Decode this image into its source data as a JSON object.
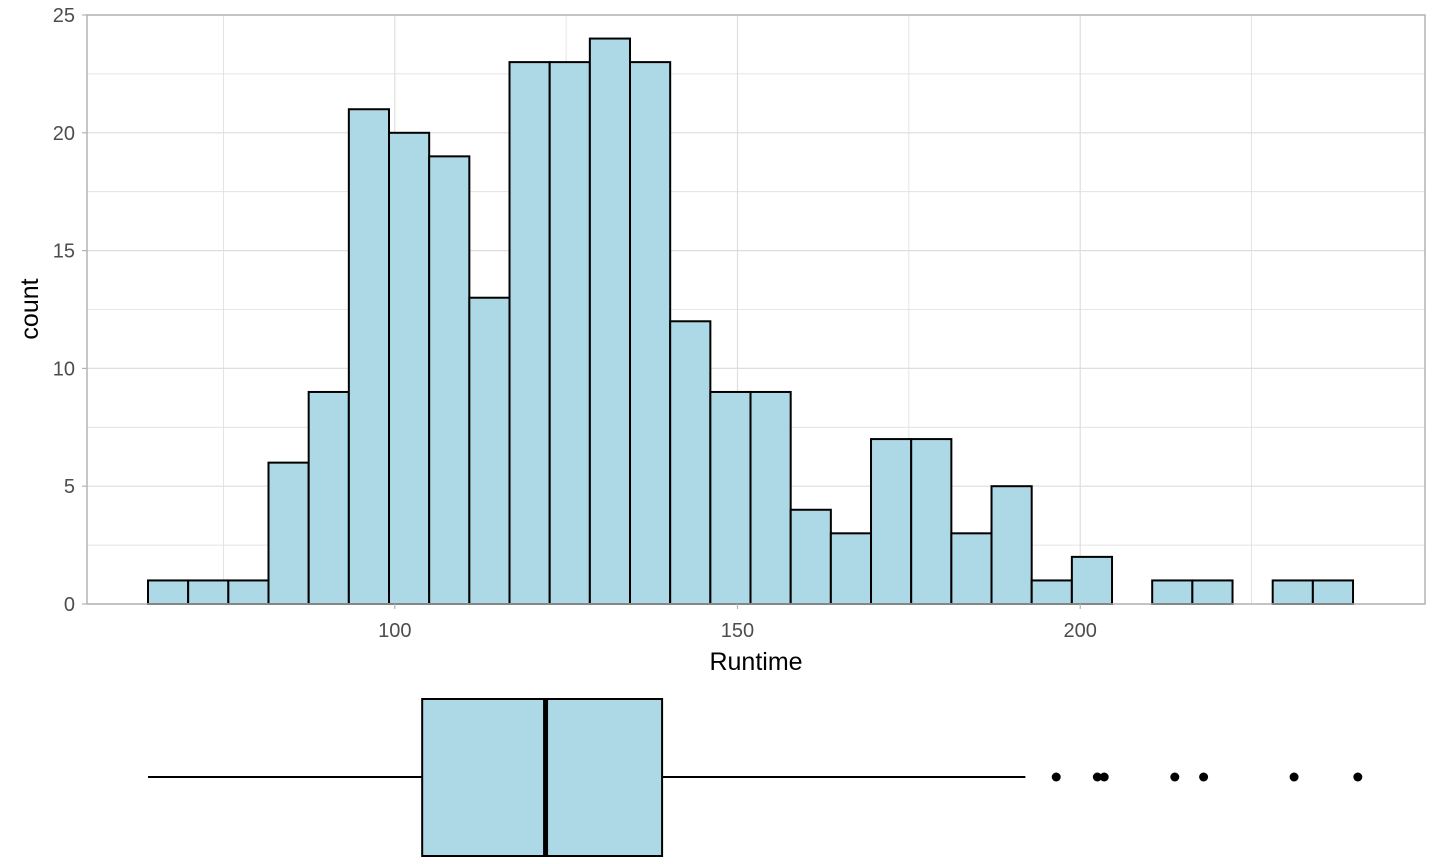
{
  "chart_data": [
    {
      "type": "histogram",
      "xlabel": "Runtime",
      "ylabel": "count",
      "xlim": [
        55.1,
        250.3
      ],
      "ylim": [
        0,
        25
      ],
      "x_ticks": [
        100,
        150,
        200
      ],
      "x_tick_labels": [
        "100",
        "150",
        "200"
      ],
      "y_ticks": [
        0,
        5,
        10,
        15,
        20,
        25
      ],
      "y_tick_labels": [
        "0",
        "5",
        "10",
        "15",
        "20",
        "25"
      ],
      "grid": true,
      "bin_width": 5.86,
      "bin_starting_at": 64.0,
      "counts": [
        1,
        1,
        1,
        6,
        9,
        21,
        20,
        19,
        13,
        23,
        23,
        24,
        23,
        12,
        9,
        9,
        4,
        3,
        7,
        7,
        3,
        5,
        1,
        2,
        0,
        1,
        1,
        0,
        1,
        1
      ],
      "fill": "#add8e6",
      "outline": "#000000"
    },
    {
      "type": "boxplot",
      "orientation": "horizontal",
      "min_whisker": 64,
      "q1": 104,
      "median": 122,
      "q3": 139,
      "max_whisker": 192,
      "outliers": [
        196.5,
        202.5,
        203.5,
        213.8,
        218,
        231.2,
        240.5
      ],
      "fill": "#add8e6",
      "outline": "#000000"
    }
  ],
  "colors": {
    "panel_border": "#b3b3b3",
    "grid": "#dedede",
    "tick_text": "#4d4d4d"
  }
}
